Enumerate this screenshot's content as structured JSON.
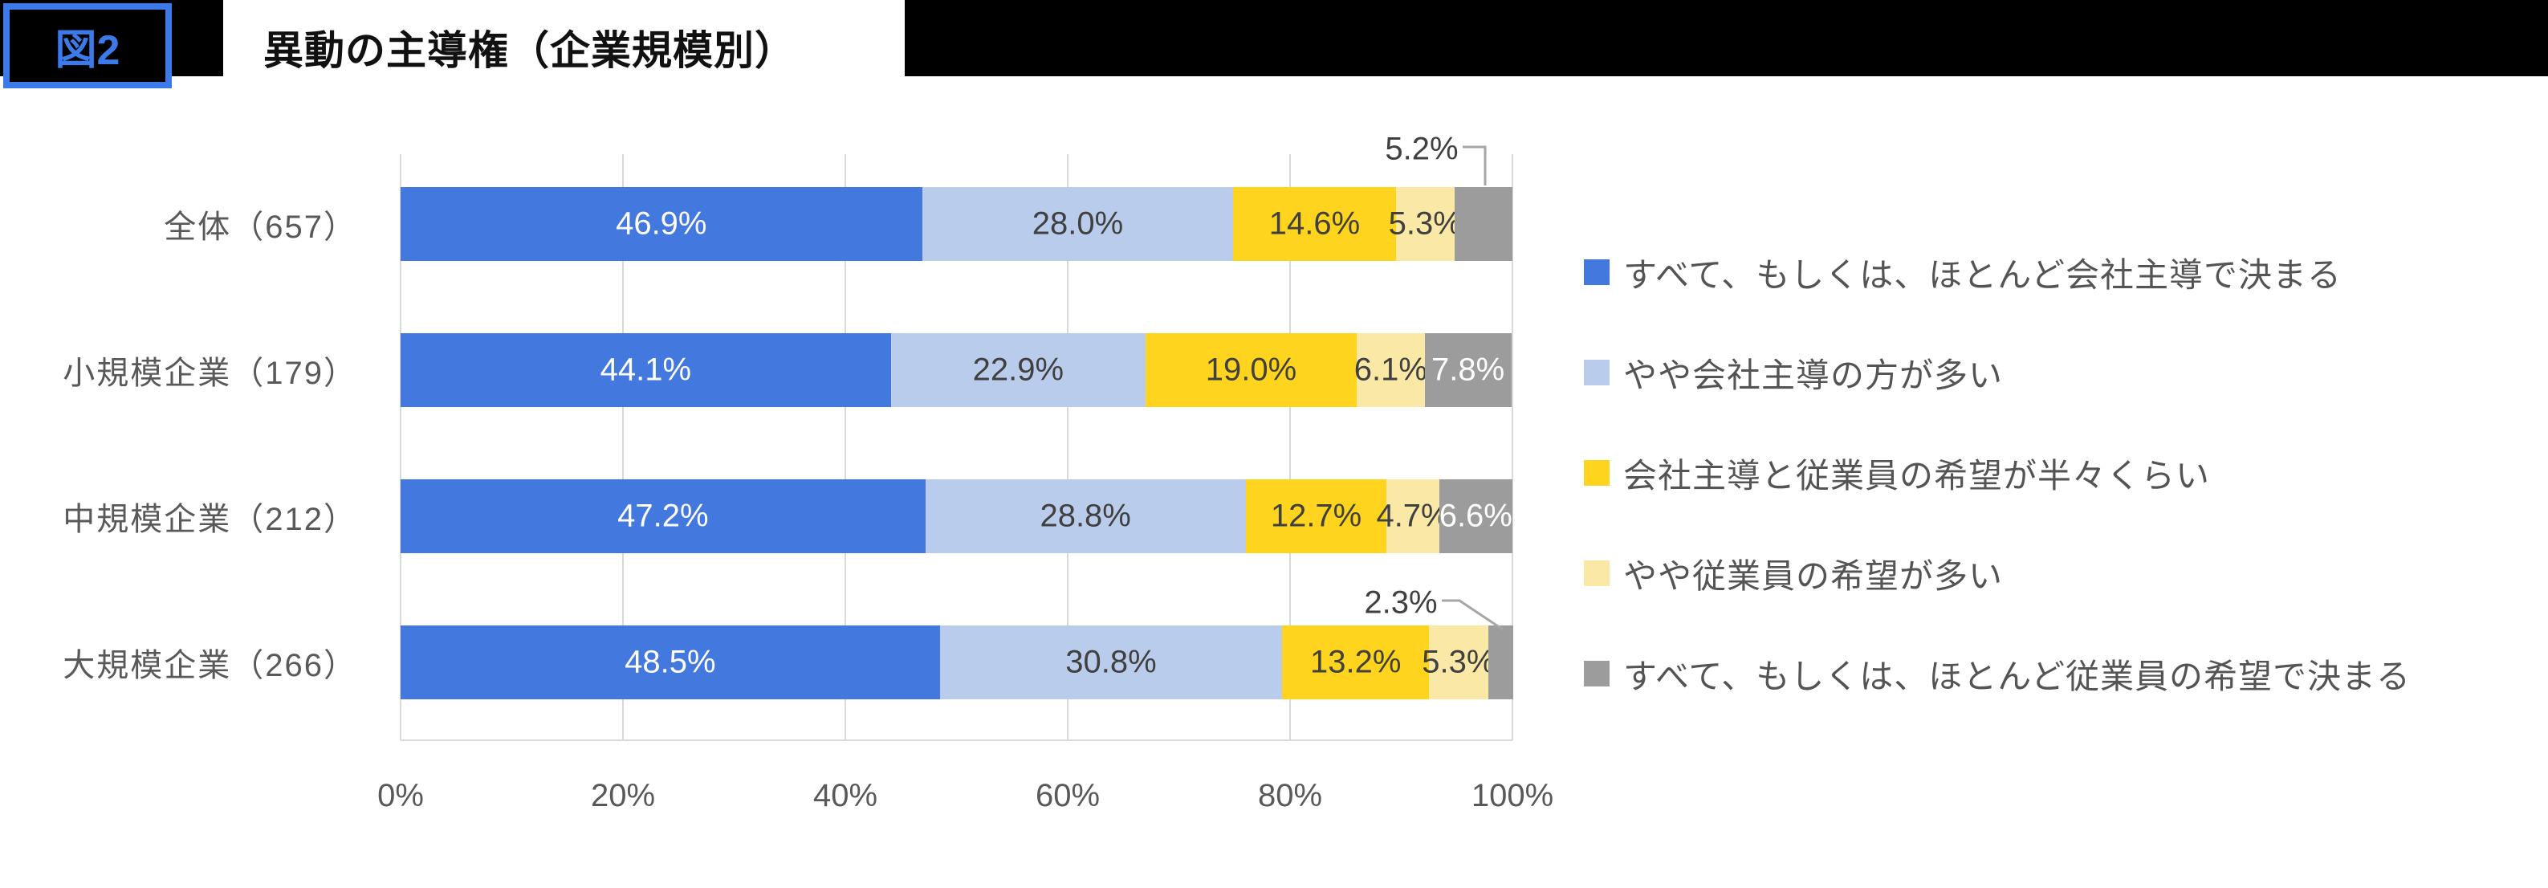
{
  "header": {
    "figure_label": "図2",
    "title": "異動の主導権（企業規模別）"
  },
  "colors": {
    "blue": "#4379DE",
    "light_blue": "#BACCEB",
    "yellow": "#FFD41E",
    "light_yellow": "#FAE8A6",
    "gray": "#9C9C9C",
    "badge_accent": "#3B7AE8",
    "banner": "#000000",
    "grid": "#D9D9D9",
    "callout_line": "#A6A6A6"
  },
  "chart_data": {
    "type": "bar",
    "orientation": "horizontal",
    "stacked": true,
    "title": "異動の主導権（企業規模別）",
    "categories": [
      "全体（657）",
      "小規模企業（179）",
      "中規模企業（212）",
      "大規模企業（266）"
    ],
    "series": [
      {
        "name": "すべて、もしくは、ほとんど会社主導で決まる",
        "color": "blue",
        "label_style": "light",
        "values": [
          46.9,
          44.1,
          47.2,
          48.5
        ],
        "labels": [
          "46.9%",
          "44.1%",
          "47.2%",
          "48.5%"
        ]
      },
      {
        "name": "やや会社主導の方が多い",
        "color": "light_blue",
        "label_style": "dark",
        "values": [
          28.0,
          22.9,
          28.8,
          30.8
        ],
        "labels": [
          "28.0%",
          "22.9%",
          "28.8%",
          "30.8%"
        ]
      },
      {
        "name": "会社主導と従業員の希望が半々くらい",
        "color": "yellow",
        "label_style": "dark",
        "values": [
          14.6,
          19.0,
          12.7,
          13.2
        ],
        "labels": [
          "14.6%",
          "19.0%",
          "12.7%",
          "13.2%"
        ]
      },
      {
        "name": "やや従業員の希望が多い",
        "color": "light_yellow",
        "label_style": "dark",
        "values": [
          5.3,
          6.1,
          4.7,
          5.3
        ],
        "labels": [
          "5.3%",
          "6.1%",
          "4.7%",
          "5.3%"
        ]
      },
      {
        "name": "すべて、もしくは、ほとんど従業員の希望で決まる",
        "color": "gray",
        "label_style": "light",
        "values": [
          5.2,
          7.8,
          6.6,
          2.3
        ],
        "labels": [
          "5.2%",
          "7.8%",
          "6.6%",
          "2.3%"
        ]
      }
    ],
    "x_ticks": [
      "0%",
      "20%",
      "40%",
      "60%",
      "80%",
      "100%"
    ],
    "xlim": [
      0,
      100
    ],
    "grid": "vertical",
    "legend_position": "right",
    "callouts": [
      {
        "category_index": 0,
        "series_index": 4,
        "label": "5.2%"
      },
      {
        "category_index": 3,
        "series_index": 4,
        "label": "2.3%"
      }
    ]
  }
}
